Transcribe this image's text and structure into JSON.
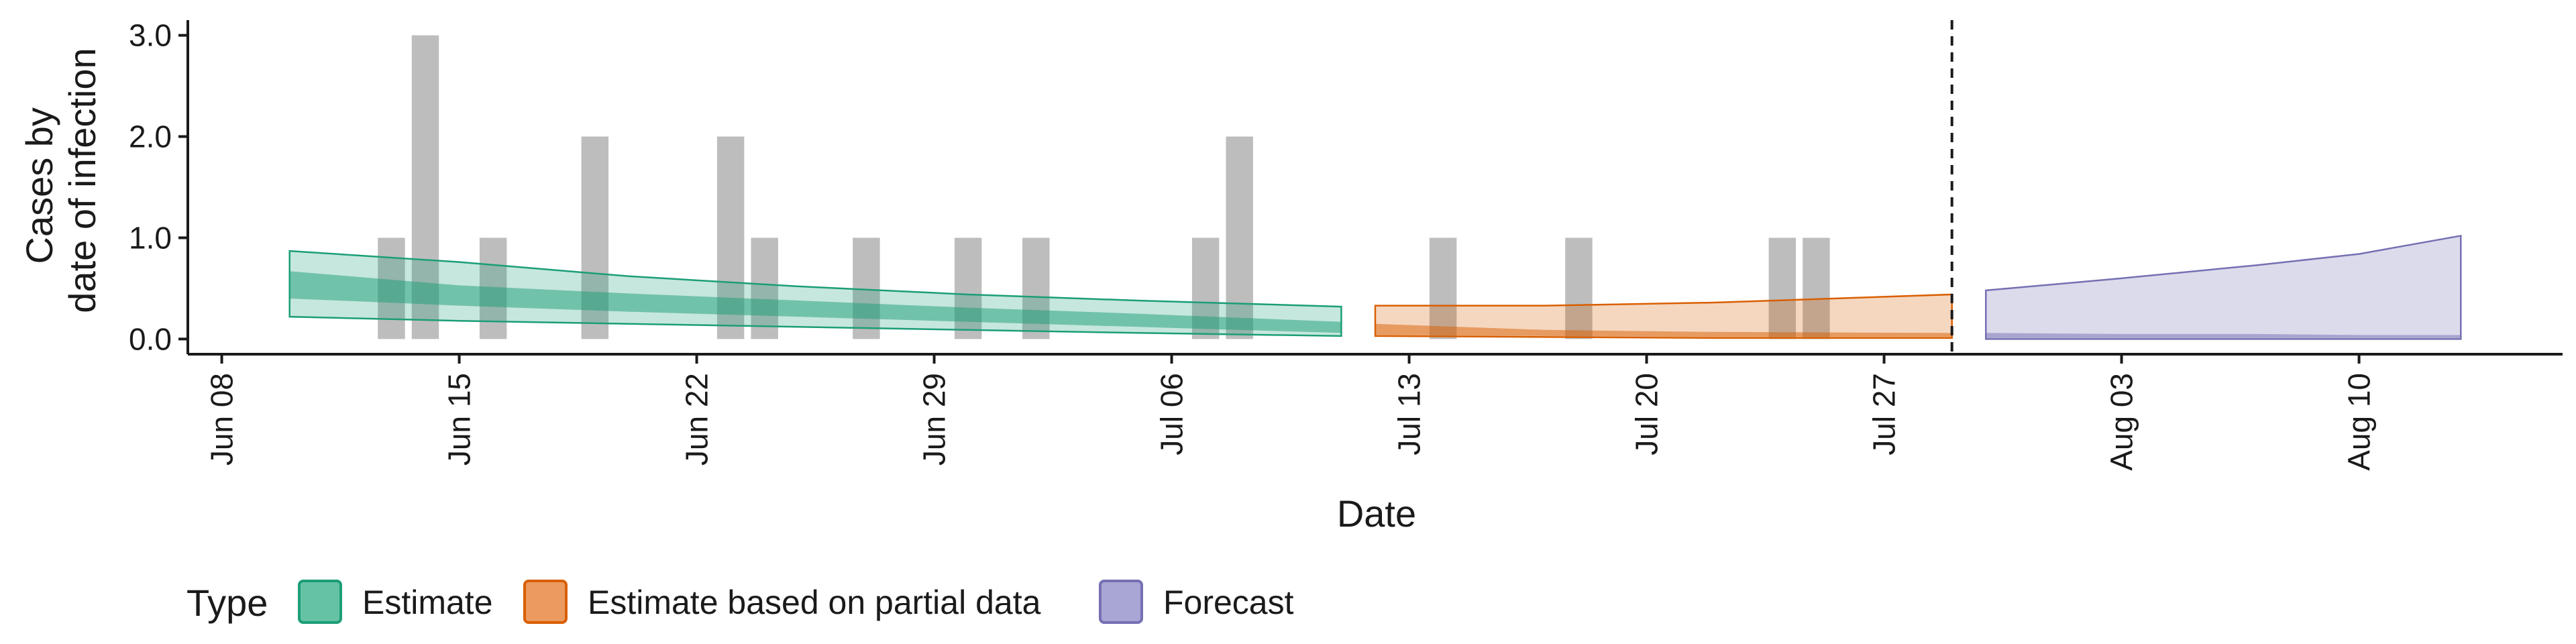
{
  "chart_data": {
    "type": "area",
    "xlabel": "Date",
    "ylabel_lines": [
      "Cases by",
      "date of infection"
    ],
    "ylim": [
      -0.15,
      3.15
    ],
    "y_ticks": [
      0,
      1,
      2,
      3
    ],
    "y_tick_labels": [
      "0.0",
      "1.0",
      "2.0",
      "3.0"
    ],
    "x_range": [
      "2020-06-07",
      "2020-08-16"
    ],
    "x_ticks": [
      "2020-06-08",
      "2020-06-15",
      "2020-06-22",
      "2020-06-29",
      "2020-07-06",
      "2020-07-13",
      "2020-07-20",
      "2020-07-27",
      "2020-08-03",
      "2020-08-10"
    ],
    "x_tick_labels": [
      "Jun 08",
      "Jun 15",
      "Jun 22",
      "Jun 29",
      "Jul 06",
      "Jul 13",
      "Jul 20",
      "Jul 27",
      "Aug 03",
      "Aug 10"
    ],
    "forecast_cutoff": "2020-07-29",
    "reported_cases": [
      {
        "date": "2020-06-13",
        "value": 1
      },
      {
        "date": "2020-06-14",
        "value": 3
      },
      {
        "date": "2020-06-16",
        "value": 1
      },
      {
        "date": "2020-06-19",
        "value": 2
      },
      {
        "date": "2020-06-23",
        "value": 2
      },
      {
        "date": "2020-06-24",
        "value": 1
      },
      {
        "date": "2020-06-27",
        "value": 1
      },
      {
        "date": "2020-06-30",
        "value": 1
      },
      {
        "date": "2020-07-02",
        "value": 1
      },
      {
        "date": "2020-07-07",
        "value": 1
      },
      {
        "date": "2020-07-08",
        "value": 2
      },
      {
        "date": "2020-07-14",
        "value": 1
      },
      {
        "date": "2020-07-18",
        "value": 1
      },
      {
        "date": "2020-07-24",
        "value": 1
      },
      {
        "date": "2020-07-25",
        "value": 1
      }
    ],
    "series": [
      {
        "name": "Estimate",
        "color": "#1b9e77",
        "dates": [
          "2020-06-10",
          "2020-06-15",
          "2020-06-20",
          "2020-06-25",
          "2020-06-30",
          "2020-07-05",
          "2020-07-11"
        ],
        "outer_lower": [
          0.22,
          0.18,
          0.15,
          0.12,
          0.09,
          0.06,
          0.03
        ],
        "outer_upper": [
          0.87,
          0.76,
          0.62,
          0.52,
          0.44,
          0.38,
          0.32
        ],
        "inner_lower": [
          0.4,
          0.33,
          0.27,
          0.22,
          0.17,
          0.12,
          0.06
        ],
        "inner_upper": [
          0.67,
          0.53,
          0.45,
          0.38,
          0.31,
          0.25,
          0.17
        ]
      },
      {
        "name": "Estimate based on partial data",
        "color": "#d95f02",
        "dates": [
          "2020-07-12",
          "2020-07-17",
          "2020-07-22",
          "2020-07-29"
        ],
        "outer_lower": [
          0.03,
          0.02,
          0.01,
          0.01
        ],
        "outer_upper": [
          0.33,
          0.33,
          0.36,
          0.44
        ],
        "inner_lower": [
          0.04,
          0.03,
          0.02,
          0.02
        ],
        "inner_upper": [
          0.15,
          0.09,
          0.07,
          0.06
        ]
      },
      {
        "name": "Forecast",
        "color": "#7570b3",
        "dates": [
          "2020-07-30",
          "2020-08-03",
          "2020-08-07",
          "2020-08-10",
          "2020-08-13"
        ],
        "outer_lower": [
          0.0,
          0.0,
          0.0,
          0.0,
          0.0
        ],
        "outer_upper": [
          0.48,
          0.6,
          0.73,
          0.84,
          1.02
        ],
        "inner_lower": [
          0.01,
          0.01,
          0.01,
          0.01,
          0.01
        ],
        "inner_upper": [
          0.06,
          0.05,
          0.05,
          0.04,
          0.04
        ]
      }
    ],
    "legend": {
      "title": "Type",
      "position": "bottom",
      "items": [
        {
          "label": "Estimate",
          "fill": "#66c2a5",
          "stroke": "#1b9e77"
        },
        {
          "label": "Estimate based on partial data",
          "fill": "#ec9a5f",
          "stroke": "#d95f02"
        },
        {
          "label": "Forecast",
          "fill": "#a9a6d6",
          "stroke": "#7570b3"
        }
      ]
    },
    "grid": false
  }
}
